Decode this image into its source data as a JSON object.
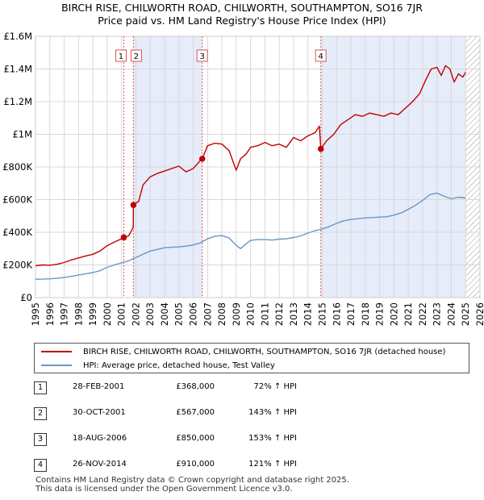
{
  "title_line1": "BIRCH RISE, CHILWORTH ROAD, CHILWORTH, SOUTHAMPTON, SO16 7JR",
  "title_line2": "Price paid vs. HM Land Registry's House Price Index (HPI)",
  "colors": {
    "property_line": "#c00000",
    "hpi_line": "#6b95c8",
    "shade": "#e6ecf9",
    "grid": "#d8d8d8",
    "marker_line": "#dd5555"
  },
  "chart_data": {
    "type": "line",
    "title": "BIRCH RISE, CHILWORTH ROAD, CHILWORTH, SOUTHAMPTON, SO16 7JR — Price paid vs. HM Land Registry's House Price Index (HPI)",
    "xlim": [
      1995,
      2026
    ],
    "ylim": [
      0,
      1600000
    ],
    "y_ticks": [
      0,
      200000,
      400000,
      600000,
      800000,
      1000000,
      1200000,
      1400000,
      1600000
    ],
    "y_tick_labels": [
      "£0",
      "£200K",
      "£400K",
      "£600K",
      "£800K",
      "£1M",
      "£1.2M",
      "£1.4M",
      "£1.6M"
    ],
    "x_tick_labels": [
      "1995",
      "1996",
      "1997",
      "1998",
      "1999",
      "2000",
      "2001",
      "2002",
      "2003",
      "2004",
      "2005",
      "2006",
      "2007",
      "2008",
      "2009",
      "2010",
      "2011",
      "2012",
      "2013",
      "2014",
      "2015",
      "2016",
      "2017",
      "2018",
      "2019",
      "2020",
      "2021",
      "2022",
      "2023",
      "2024",
      "2025",
      "2026"
    ],
    "shaded_ranges": [
      [
        2001.83,
        2006.63
      ],
      [
        2014.9,
        2025.0
      ]
    ],
    "series": [
      {
        "name": "BIRCH RISE, CHILWORTH ROAD, CHILWORTH, SOUTHAMPTON, SO16 7JR (detached house)",
        "x": [
          1995.0,
          1995.5,
          1996.0,
          1996.5,
          1997.0,
          1997.5,
          1998.0,
          1998.5,
          1999.0,
          1999.5,
          2000.0,
          2000.5,
          2001.0,
          2001.16,
          2001.5,
          2001.82,
          2001.83,
          2002.2,
          2002.5,
          2003.0,
          2003.5,
          2004.0,
          2004.5,
          2005.0,
          2005.5,
          2006.0,
          2006.4,
          2006.63,
          2007.0,
          2007.5,
          2008.0,
          2008.5,
          2009.0,
          2009.3,
          2009.7,
          2010.0,
          2010.5,
          2011.0,
          2011.5,
          2012.0,
          2012.5,
          2013.0,
          2013.5,
          2014.0,
          2014.5,
          2014.8,
          2014.9,
          2015.3,
          2015.8,
          2016.3,
          2016.8,
          2017.3,
          2017.8,
          2018.3,
          2018.8,
          2019.3,
          2019.8,
          2020.3,
          2020.8,
          2021.3,
          2021.8,
          2022.2,
          2022.6,
          2023.0,
          2023.3,
          2023.6,
          2023.9,
          2024.2,
          2024.5,
          2024.8,
          2025.0
        ],
        "y": [
          195000,
          200000,
          198000,
          204000,
          215000,
          230000,
          243000,
          255000,
          265000,
          285000,
          318000,
          340000,
          360000,
          368000,
          378000,
          430000,
          567000,
          590000,
          690000,
          740000,
          760000,
          775000,
          790000,
          805000,
          770000,
          790000,
          830000,
          850000,
          930000,
          945000,
          940000,
          900000,
          780000,
          850000,
          880000,
          920000,
          930000,
          950000,
          930000,
          940000,
          920000,
          980000,
          960000,
          990000,
          1010000,
          1050000,
          910000,
          960000,
          1000000,
          1060000,
          1090000,
          1120000,
          1110000,
          1130000,
          1120000,
          1110000,
          1130000,
          1120000,
          1160000,
          1200000,
          1250000,
          1330000,
          1400000,
          1410000,
          1360000,
          1420000,
          1400000,
          1320000,
          1370000,
          1350000,
          1380000
        ]
      },
      {
        "name": "HPI: Average price, detached house, Test Valley",
        "x": [
          1995.0,
          1995.5,
          1996.0,
          1996.5,
          1997.0,
          1997.5,
          1998.0,
          1998.5,
          1999.0,
          1999.5,
          2000.0,
          2000.5,
          2001.0,
          2001.5,
          2002.0,
          2002.5,
          2003.0,
          2003.5,
          2004.0,
          2004.5,
          2005.0,
          2005.5,
          2006.0,
          2006.5,
          2007.0,
          2007.5,
          2008.0,
          2008.5,
          2009.0,
          2009.3,
          2009.7,
          2010.0,
          2010.5,
          2011.0,
          2011.5,
          2012.0,
          2012.5,
          2013.0,
          2013.5,
          2014.0,
          2014.5,
          2015.0,
          2015.5,
          2016.0,
          2016.5,
          2017.0,
          2017.5,
          2018.0,
          2018.5,
          2019.0,
          2019.5,
          2020.0,
          2020.5,
          2021.0,
          2021.5,
          2022.0,
          2022.5,
          2023.0,
          2023.5,
          2024.0,
          2024.5,
          2025.0
        ],
        "y": [
          112000,
          113000,
          115000,
          118000,
          123000,
          130000,
          138000,
          145000,
          153000,
          165000,
          185000,
          200000,
          213000,
          225000,
          245000,
          265000,
          285000,
          295000,
          305000,
          308000,
          310000,
          315000,
          322000,
          335000,
          360000,
          375000,
          380000,
          365000,
          320000,
          300000,
          330000,
          350000,
          355000,
          355000,
          352000,
          358000,
          360000,
          368000,
          378000,
          395000,
          410000,
          420000,
          435000,
          455000,
          470000,
          478000,
          483000,
          488000,
          490000,
          493000,
          495000,
          505000,
          518000,
          540000,
          565000,
          595000,
          630000,
          640000,
          620000,
          605000,
          615000,
          610000
        ]
      }
    ],
    "sales": [
      {
        "label": "1",
        "x": 2001.16,
        "y": 368000
      },
      {
        "label": "2",
        "x": 2001.83,
        "y": 567000
      },
      {
        "label": "3",
        "x": 2006.63,
        "y": 850000
      },
      {
        "label": "4",
        "x": 2014.9,
        "y": 910000
      }
    ],
    "hatched_from": 2025.0
  },
  "legend": {
    "property_label": "BIRCH RISE, CHILWORTH ROAD, CHILWORTH, SOUTHAMPTON, SO16 7JR (detached house)",
    "hpi_label": "HPI: Average price, detached house, Test Valley"
  },
  "transactions": [
    {
      "num": "1",
      "date": "28-FEB-2001",
      "price": "£368,000",
      "pct": "72% ↑ HPI"
    },
    {
      "num": "2",
      "date": "30-OCT-2001",
      "price": "£567,000",
      "pct": "143% ↑ HPI"
    },
    {
      "num": "3",
      "date": "18-AUG-2006",
      "price": "£850,000",
      "pct": "153% ↑ HPI"
    },
    {
      "num": "4",
      "date": "26-NOV-2014",
      "price": "£910,000",
      "pct": "121% ↑ HPI"
    }
  ],
  "footer": {
    "line1": "Contains HM Land Registry data © Crown copyright and database right 2025.",
    "line2": "This data is licensed under the Open Government Licence v3.0."
  }
}
